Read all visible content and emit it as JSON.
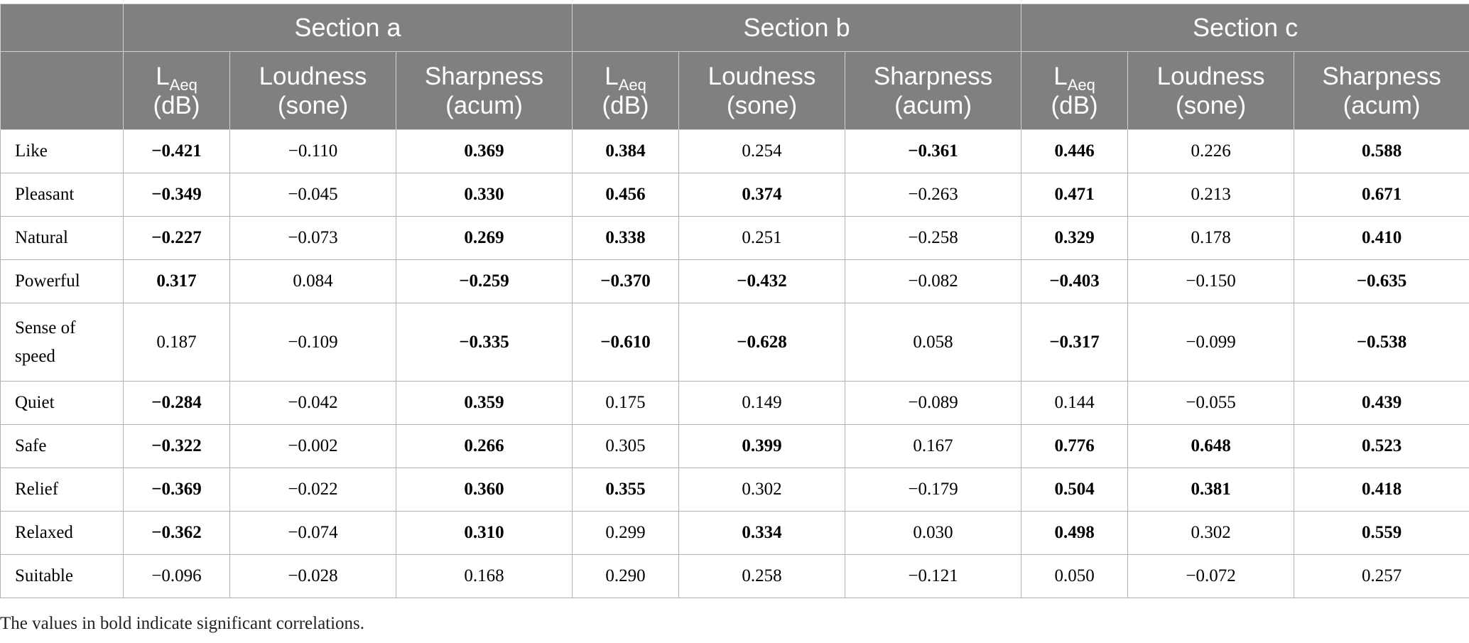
{
  "table": {
    "sections": [
      "Section a",
      "Section b",
      "Section c"
    ],
    "measures": [
      {
        "name": "L",
        "sub": "Aeq",
        "unit": "(dB)"
      },
      {
        "name": "Loudness",
        "sub": "",
        "unit": "(sone)"
      },
      {
        "name": "Sharpness",
        "sub": "",
        "unit": "(acum)"
      }
    ],
    "rows": [
      {
        "label": "Like",
        "values": [
          {
            "v": "−0.421",
            "bold": true
          },
          {
            "v": "−0.110",
            "bold": false
          },
          {
            "v": "0.369",
            "bold": true
          },
          {
            "v": "0.384",
            "bold": true
          },
          {
            "v": "0.254",
            "bold": false
          },
          {
            "v": "−0.361",
            "bold": true
          },
          {
            "v": "0.446",
            "bold": true
          },
          {
            "v": "0.226",
            "bold": false
          },
          {
            "v": "0.588",
            "bold": true
          }
        ]
      },
      {
        "label": "Pleasant",
        "values": [
          {
            "v": "−0.349",
            "bold": true
          },
          {
            "v": "−0.045",
            "bold": false
          },
          {
            "v": "0.330",
            "bold": true
          },
          {
            "v": "0.456",
            "bold": true
          },
          {
            "v": "0.374",
            "bold": true
          },
          {
            "v": "−0.263",
            "bold": false
          },
          {
            "v": "0.471",
            "bold": true
          },
          {
            "v": "0.213",
            "bold": false
          },
          {
            "v": "0.671",
            "bold": true
          }
        ]
      },
      {
        "label": "Natural",
        "values": [
          {
            "v": "−0.227",
            "bold": true
          },
          {
            "v": "−0.073",
            "bold": false
          },
          {
            "v": "0.269",
            "bold": true
          },
          {
            "v": "0.338",
            "bold": true
          },
          {
            "v": "0.251",
            "bold": false
          },
          {
            "v": "−0.258",
            "bold": false
          },
          {
            "v": "0.329",
            "bold": true
          },
          {
            "v": "0.178",
            "bold": false
          },
          {
            "v": "0.410",
            "bold": true
          }
        ]
      },
      {
        "label": "Powerful",
        "values": [
          {
            "v": "0.317",
            "bold": true
          },
          {
            "v": "0.084",
            "bold": false
          },
          {
            "v": "−0.259",
            "bold": true
          },
          {
            "v": "−0.370",
            "bold": true
          },
          {
            "v": "−0.432",
            "bold": true
          },
          {
            "v": "−0.082",
            "bold": false
          },
          {
            "v": "−0.403",
            "bold": true
          },
          {
            "v": "−0.150",
            "bold": false
          },
          {
            "v": "−0.635",
            "bold": true
          }
        ]
      },
      {
        "label": "Sense of speed",
        "label_lines": [
          "Sense of",
          "speed"
        ],
        "values": [
          {
            "v": "0.187",
            "bold": false
          },
          {
            "v": "−0.109",
            "bold": false
          },
          {
            "v": "−0.335",
            "bold": true
          },
          {
            "v": "−0.610",
            "bold": true
          },
          {
            "v": "−0.628",
            "bold": true
          },
          {
            "v": "0.058",
            "bold": false
          },
          {
            "v": "−0.317",
            "bold": true
          },
          {
            "v": "−0.099",
            "bold": false
          },
          {
            "v": "−0.538",
            "bold": true
          }
        ]
      },
      {
        "label": "Quiet",
        "values": [
          {
            "v": "−0.284",
            "bold": true
          },
          {
            "v": "−0.042",
            "bold": false
          },
          {
            "v": "0.359",
            "bold": true
          },
          {
            "v": "0.175",
            "bold": false
          },
          {
            "v": "0.149",
            "bold": false
          },
          {
            "v": "−0.089",
            "bold": false
          },
          {
            "v": "0.144",
            "bold": false
          },
          {
            "v": "−0.055",
            "bold": false
          },
          {
            "v": "0.439",
            "bold": true
          }
        ]
      },
      {
        "label": "Safe",
        "values": [
          {
            "v": "−0.322",
            "bold": true
          },
          {
            "v": "−0.002",
            "bold": false
          },
          {
            "v": "0.266",
            "bold": true
          },
          {
            "v": "0.305",
            "bold": false
          },
          {
            "v": "0.399",
            "bold": true
          },
          {
            "v": "0.167",
            "bold": false
          },
          {
            "v": "0.776",
            "bold": true
          },
          {
            "v": "0.648",
            "bold": true
          },
          {
            "v": "0.523",
            "bold": true
          }
        ]
      },
      {
        "label": "Relief",
        "values": [
          {
            "v": "−0.369",
            "bold": true
          },
          {
            "v": "−0.022",
            "bold": false
          },
          {
            "v": "0.360",
            "bold": true
          },
          {
            "v": "0.355",
            "bold": true
          },
          {
            "v": "0.302",
            "bold": false
          },
          {
            "v": "−0.179",
            "bold": false
          },
          {
            "v": "0.504",
            "bold": true
          },
          {
            "v": "0.381",
            "bold": true
          },
          {
            "v": "0.418",
            "bold": true
          }
        ]
      },
      {
        "label": "Relaxed",
        "values": [
          {
            "v": "−0.362",
            "bold": true
          },
          {
            "v": "−0.074",
            "bold": false
          },
          {
            "v": "0.310",
            "bold": true
          },
          {
            "v": "0.299",
            "bold": false
          },
          {
            "v": "0.334",
            "bold": true
          },
          {
            "v": "0.030",
            "bold": false
          },
          {
            "v": "0.498",
            "bold": true
          },
          {
            "v": "0.302",
            "bold": false
          },
          {
            "v": "0.559",
            "bold": true
          }
        ]
      },
      {
        "label": "Suitable",
        "values": [
          {
            "v": "−0.096",
            "bold": false
          },
          {
            "v": "−0.028",
            "bold": false
          },
          {
            "v": "0.168",
            "bold": false
          },
          {
            "v": "0.290",
            "bold": false
          },
          {
            "v": "0.258",
            "bold": false
          },
          {
            "v": "−0.121",
            "bold": false
          },
          {
            "v": "0.050",
            "bold": false
          },
          {
            "v": "−0.072",
            "bold": false
          },
          {
            "v": "0.257",
            "bold": false
          }
        ]
      }
    ]
  },
  "footnote": "The values in bold indicate significant correlations.",
  "colors": {
    "header_bg": "#808080",
    "header_text": "#ffffff",
    "grid": "#b3b3b3"
  }
}
